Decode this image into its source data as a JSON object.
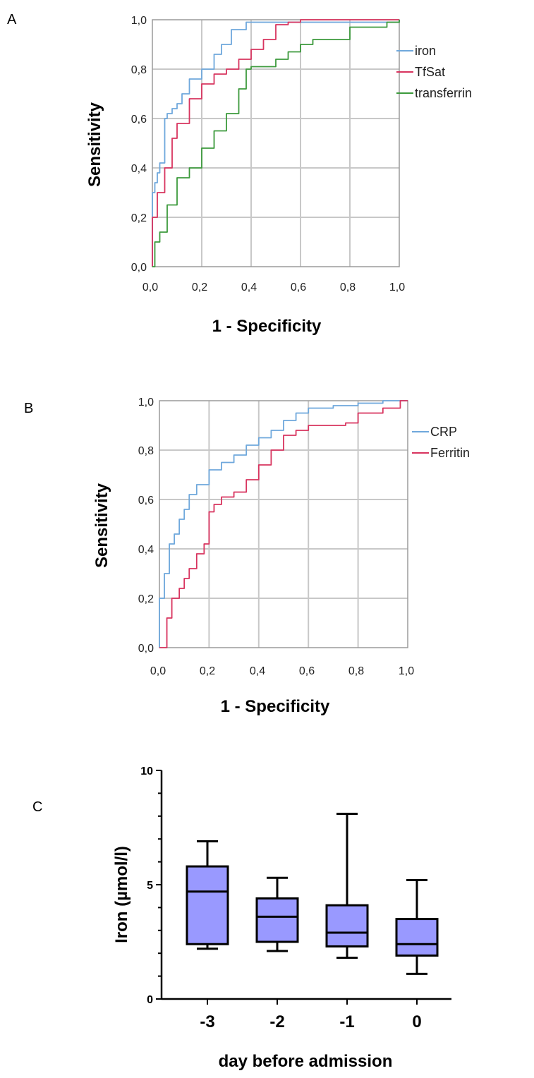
{
  "panels": {
    "A": {
      "letter": "A",
      "xlabel": "1 - Specificity",
      "ylabel": "Sensitivity",
      "tick_labels": [
        "0,0",
        "0,2",
        "0,4",
        "0,6",
        "0,8",
        "1,0"
      ]
    },
    "B": {
      "letter": "B",
      "xlabel": "1 - Specificity",
      "ylabel": "Sensitivity",
      "tick_labels": [
        "0,0",
        "0,2",
        "0,4",
        "0,6",
        "0,8",
        "1,0"
      ]
    },
    "C": {
      "letter": "C",
      "xlabel": "day before admission",
      "ylabel": "Iron (µmol/l)",
      "y_tick_labels": [
        "0",
        "5",
        "10"
      ]
    }
  },
  "colors": {
    "blue": "#6fa8dc",
    "red": "#d8345f",
    "green": "#3c9a3c",
    "box_fill": "#9999ff"
  },
  "chart_data": [
    {
      "type": "line",
      "panel": "A",
      "xlabel": "1 - Specificity",
      "ylabel": "Sensitivity",
      "xlim": [
        0,
        1
      ],
      "ylim": [
        0,
        1
      ],
      "grid": true,
      "legend_position": "right",
      "series": [
        {
          "name": "iron",
          "color": "#6fa8dc",
          "x": [
            0,
            0.0,
            0.01,
            0.02,
            0.03,
            0.05,
            0.06,
            0.08,
            0.1,
            0.12,
            0.15,
            0.2,
            0.25,
            0.28,
            0.32,
            0.38,
            0.6,
            1.0
          ],
          "y": [
            0,
            0.3,
            0.34,
            0.38,
            0.42,
            0.6,
            0.62,
            0.64,
            0.66,
            0.7,
            0.76,
            0.8,
            0.86,
            0.9,
            0.96,
            0.99,
            0.99,
            1.0
          ]
        },
        {
          "name": "TfSat",
          "color": "#d8345f",
          "x": [
            0,
            0.0,
            0.02,
            0.05,
            0.08,
            0.1,
            0.15,
            0.2,
            0.25,
            0.3,
            0.35,
            0.4,
            0.45,
            0.5,
            0.55,
            0.6,
            1.0
          ],
          "y": [
            0,
            0.2,
            0.3,
            0.4,
            0.52,
            0.58,
            0.68,
            0.74,
            0.78,
            0.8,
            0.84,
            0.88,
            0.92,
            0.98,
            0.99,
            1.0,
            1.0
          ]
        },
        {
          "name": "transferrin",
          "color": "#3c9a3c",
          "x": [
            0,
            0.01,
            0.03,
            0.06,
            0.1,
            0.15,
            0.2,
            0.25,
            0.3,
            0.35,
            0.38,
            0.4,
            0.5,
            0.55,
            0.6,
            0.65,
            0.8,
            0.95,
            1.0
          ],
          "y": [
            0,
            0.1,
            0.14,
            0.25,
            0.36,
            0.4,
            0.48,
            0.55,
            0.62,
            0.72,
            0.8,
            0.81,
            0.84,
            0.87,
            0.9,
            0.92,
            0.97,
            0.99,
            1.0
          ]
        }
      ]
    },
    {
      "type": "line",
      "panel": "B",
      "xlabel": "1 - Specificity",
      "ylabel": "Sensitivity",
      "xlim": [
        0,
        1
      ],
      "ylim": [
        0,
        1
      ],
      "grid": true,
      "legend_position": "right",
      "series": [
        {
          "name": "CRP",
          "color": "#6fa8dc",
          "x": [
            0,
            0.0,
            0.02,
            0.04,
            0.06,
            0.08,
            0.1,
            0.12,
            0.15,
            0.2,
            0.25,
            0.3,
            0.35,
            0.4,
            0.45,
            0.5,
            0.55,
            0.6,
            0.7,
            0.8,
            0.9,
            1.0
          ],
          "y": [
            0,
            0.2,
            0.3,
            0.42,
            0.46,
            0.52,
            0.56,
            0.62,
            0.66,
            0.72,
            0.75,
            0.78,
            0.82,
            0.85,
            0.88,
            0.92,
            0.95,
            0.97,
            0.98,
            0.99,
            1.0,
            1.0
          ]
        },
        {
          "name": "Ferritin",
          "color": "#d8345f",
          "x": [
            0,
            0.03,
            0.05,
            0.08,
            0.1,
            0.12,
            0.15,
            0.18,
            0.2,
            0.22,
            0.25,
            0.3,
            0.35,
            0.4,
            0.45,
            0.5,
            0.55,
            0.6,
            0.75,
            0.8,
            0.9,
            0.97,
            1.0
          ],
          "y": [
            0,
            0.12,
            0.2,
            0.24,
            0.28,
            0.32,
            0.38,
            0.42,
            0.55,
            0.58,
            0.61,
            0.63,
            0.68,
            0.74,
            0.8,
            0.86,
            0.88,
            0.9,
            0.91,
            0.95,
            0.97,
            1.0,
            1.0
          ]
        }
      ]
    },
    {
      "type": "box",
      "panel": "C",
      "xlabel": "day before admission",
      "ylabel": "Iron (µmol/l)",
      "ylim": [
        0,
        10
      ],
      "categories": [
        "-3",
        "-2",
        "-1",
        "0"
      ],
      "boxes": [
        {
          "min": 2.2,
          "q1": 2.4,
          "median": 4.7,
          "q3": 5.8,
          "max": 6.9
        },
        {
          "min": 2.1,
          "q1": 2.5,
          "median": 3.6,
          "q3": 4.4,
          "max": 5.3
        },
        {
          "min": 1.8,
          "q1": 2.3,
          "median": 2.9,
          "q3": 4.1,
          "max": 8.1
        },
        {
          "min": 1.1,
          "q1": 1.9,
          "median": 2.4,
          "q3": 3.5,
          "max": 5.2
        }
      ]
    }
  ]
}
